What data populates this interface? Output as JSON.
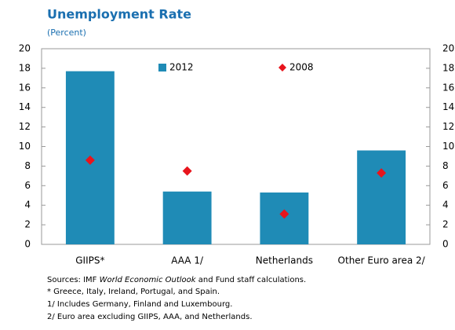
{
  "chart_data": {
    "type": "bar",
    "title": "Unemployment Rate",
    "subtitle": "(Percent)",
    "categories": [
      "GIIPS*",
      "AAA 1/",
      "Netherlands",
      "Other Euro area 2/"
    ],
    "series": [
      {
        "name": "2012",
        "color": "#1f8bb6",
        "mark": "bar",
        "values": [
          17.7,
          5.4,
          5.3,
          9.6
        ]
      },
      {
        "name": "2008",
        "color": "#e8141c",
        "mark": "diamond",
        "values": [
          8.6,
          7.5,
          3.1,
          7.3
        ]
      }
    ],
    "ylim": [
      0,
      20
    ],
    "yticks": [
      0,
      2,
      4,
      6,
      8,
      10,
      12,
      14,
      16,
      18,
      20
    ],
    "y2lim": [
      0,
      20
    ],
    "y2ticks": [
      0,
      2,
      4,
      6,
      8,
      10,
      12,
      14,
      16,
      18,
      20
    ],
    "legend": "top",
    "grid": false,
    "notes": {
      "sources": {
        "prefix": "Sources: IMF ",
        "italic": "World Economic Outlook",
        "suffix": " and Fund staff calculations."
      },
      "lines": [
        "* Greece, Italy, Ireland, Portugal, and Spain.",
        "1/ Includes Germany, Finland and Luxembourg.",
        "2/ Euro area excluding GIIPS, AAA, and Netherlands."
      ]
    }
  }
}
